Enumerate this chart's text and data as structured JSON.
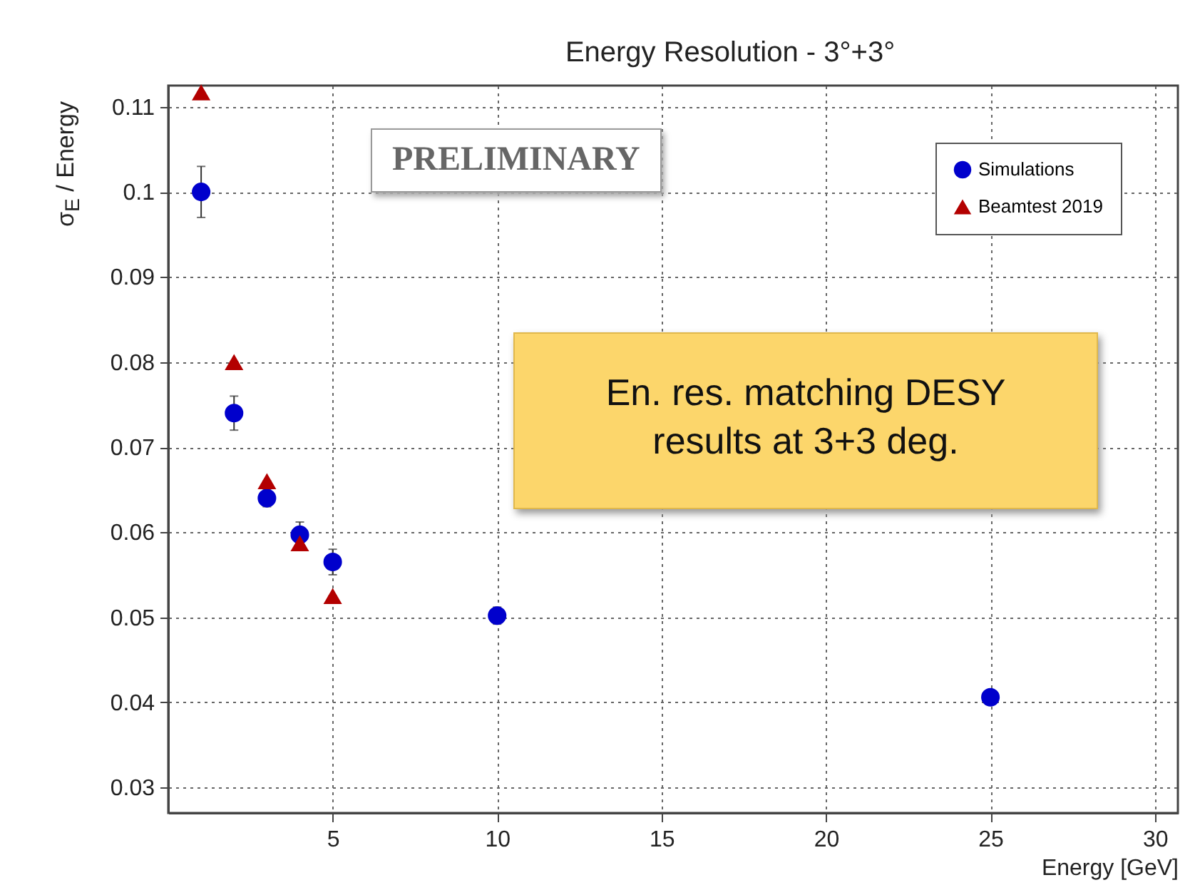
{
  "chart_data": {
    "type": "scatter",
    "title": "Energy Resolution -  3°+3°",
    "xlabel": "Energy [GeV]",
    "ylabel": "σ$_{E}$ / Energy",
    "annotations": [
      "PRELIMINARY",
      "En. res. matching DESY results at 3+3 deg."
    ],
    "xlim": [
      0,
      30.7
    ],
    "xticks": [
      5,
      10,
      15,
      20,
      25,
      30
    ],
    "ylim": [
      0.027,
      0.1125
    ],
    "yticks": [
      0.03,
      0.04,
      0.05,
      0.06,
      0.07,
      0.08,
      0.09,
      0.1,
      0.11
    ],
    "grid": true,
    "legend": "top right",
    "series": [
      {
        "name": "Simulations",
        "color": "#0000cc",
        "marker": "circle",
        "x": [
          1,
          2,
          3,
          4,
          5,
          10,
          25
        ],
        "values": [
          0.1,
          0.074,
          0.064,
          0.0597,
          0.0565,
          0.0502,
          0.0406
        ],
        "errors": [
          0.003,
          0.002,
          0.001,
          0.0015,
          0.0015,
          0.001,
          null
        ]
      },
      {
        "name": "Beamtest 2019",
        "color": "#b30000",
        "marker": "triangle",
        "x": [
          1,
          2,
          3,
          4,
          5
        ],
        "values": [
          0.1117,
          0.08,
          0.066,
          0.0587,
          0.0525
        ]
      }
    ]
  }
}
